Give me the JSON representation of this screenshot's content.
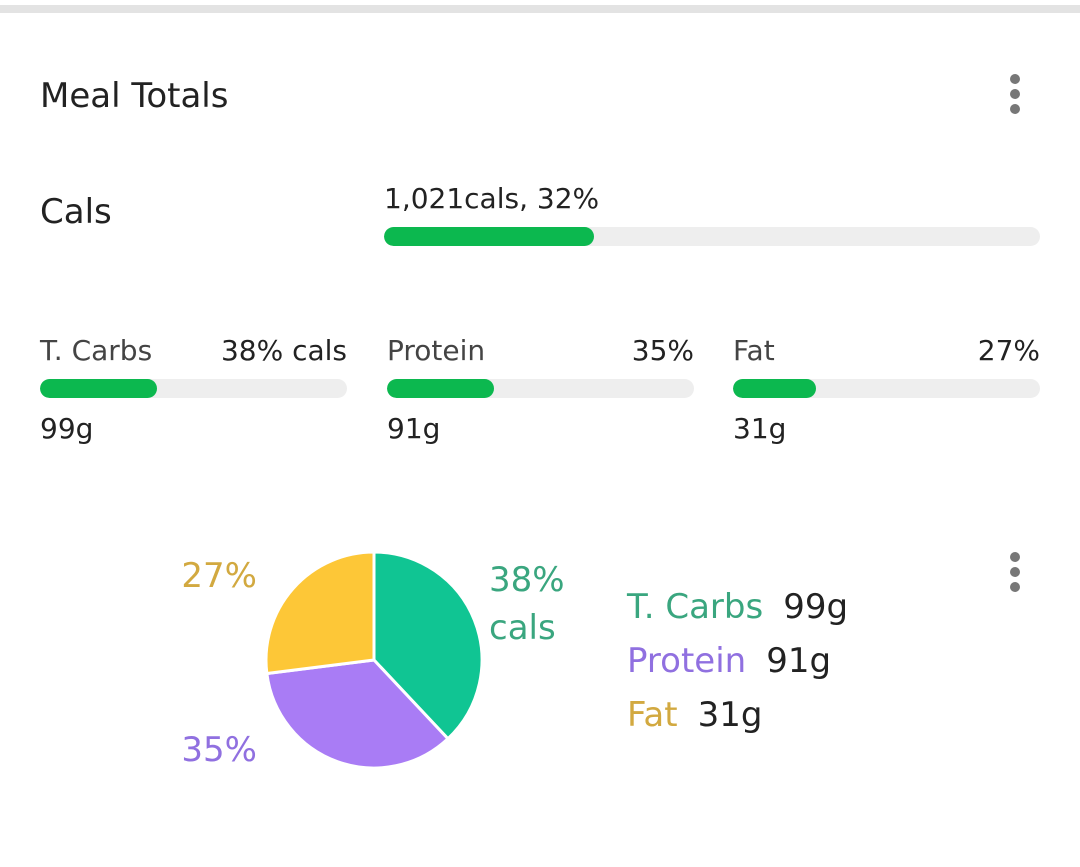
{
  "header": {
    "title": "Meal Totals"
  },
  "cals": {
    "label": "Cals",
    "summary": "1,021cals, 32%",
    "percent": 32
  },
  "macros": [
    {
      "name": "T. Carbs",
      "percent_label": "38% cals",
      "percent": 38,
      "grams": "99g"
    },
    {
      "name": "Protein",
      "percent_label": "35%",
      "percent": 35,
      "grams": "91g"
    },
    {
      "name": "Fat",
      "percent_label": "27%",
      "percent": 27,
      "grams": "31g"
    }
  ],
  "chart_data": {
    "type": "pie",
    "categories": [
      "T. Carbs",
      "Protein",
      "Fat"
    ],
    "values": [
      38,
      35,
      27
    ],
    "value_labels": [
      "38% cals",
      "35%",
      "27%"
    ],
    "colors": [
      "#10c593",
      "#a97cf5",
      "#fdc737"
    ],
    "label_colors": [
      "#3aa67f",
      "#9070e0",
      "#d2a940"
    ]
  }
}
